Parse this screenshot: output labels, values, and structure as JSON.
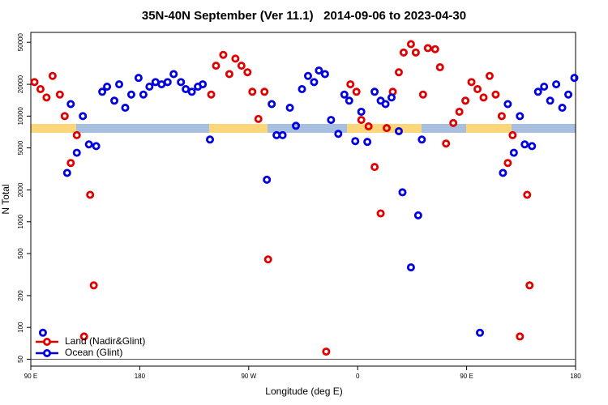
{
  "chart_data": {
    "type": "scatter",
    "title": "35N-40N September (Ver 11.1)   2014-09-06 to 2023-04-30",
    "x_label": "Longitude (deg E)",
    "y_label": "N Total",
    "log_y": true,
    "legend": "bottom-left",
    "xlim": [
      90,
      540
    ],
    "ylim": [
      43,
      62000
    ],
    "xticks": [
      {
        "value": 90,
        "label": "90 E"
      },
      180,
      {
        "value": 270,
        "label": "90 W"
      },
      {
        "value": 360,
        "label": "0"
      },
      {
        "value": 450,
        "label": "90 E"
      },
      {
        "value": 540,
        "label": "180"
      }
    ],
    "yticks": [
      50,
      100,
      200,
      500,
      1000,
      2000,
      5000,
      10000,
      20000,
      50000
    ],
    "series": [
      {
        "name": "Land (Nadir&Glint)",
        "color": "#e00000",
        "x": [
          93,
          98,
          103,
          108,
          114,
          118,
          123,
          128,
          134,
          139,
          142,
          239,
          243,
          249,
          254,
          259,
          264,
          269,
          273,
          278,
          283,
          286,
          334,
          354,
          359,
          363,
          369,
          374,
          379,
          384,
          389,
          394,
          398,
          404,
          408,
          414,
          418,
          424,
          428,
          433,
          439,
          444,
          449,
          454,
          459,
          464,
          469,
          474,
          479,
          484,
          488,
          494,
          500,
          502
        ],
        "values": [
          21000,
          18000,
          15000,
          24000,
          16000,
          10000,
          3600,
          6600,
          82,
          1800,
          250,
          16000,
          30000,
          38000,
          25000,
          35000,
          30000,
          26000,
          17000,
          9400,
          17000,
          440,
          59,
          20000,
          17000,
          9200,
          8000,
          3300,
          1200,
          7700,
          17000,
          26000,
          40000,
          48000,
          40000,
          16000,
          44000,
          43000,
          29000,
          5500,
          8600,
          11000,
          14000,
          21000,
          18000,
          15000,
          24000,
          16000,
          10000,
          3600,
          6600,
          82,
          1800,
          250
        ]
      },
      {
        "name": "Ocean (Glint)",
        "color": "#0000e0",
        "x": [
          100,
          120,
          123,
          128,
          133,
          138,
          144,
          149,
          153,
          159,
          163,
          168,
          173,
          179,
          183,
          188,
          193,
          198,
          203,
          208,
          214,
          218,
          223,
          228,
          232,
          238,
          285,
          289,
          293,
          298,
          304,
          309,
          314,
          319,
          324,
          328,
          333,
          338,
          344,
          349,
          353,
          358,
          363,
          368,
          374,
          379,
          383,
          388,
          394,
          397,
          404,
          410,
          413,
          461,
          480,
          484,
          489,
          494,
          498,
          504,
          509,
          514,
          519,
          524,
          529,
          534,
          539
        ],
        "values": [
          89,
          2900,
          13000,
          4500,
          10000,
          5400,
          5200,
          17000,
          19000,
          14000,
          20000,
          12000,
          16000,
          23000,
          16000,
          19000,
          21000,
          20000,
          21000,
          25000,
          21000,
          18000,
          17000,
          19000,
          20000,
          6000,
          2500,
          13000,
          6600,
          6600,
          12000,
          8100,
          18000,
          24000,
          21000,
          27000,
          25000,
          9200,
          6800,
          16000,
          14000,
          5800,
          11000,
          5700,
          17000,
          14000,
          13000,
          15000,
          7200,
          1900,
          370,
          1150,
          6000,
          89,
          2900,
          13000,
          4500,
          10000,
          5400,
          5200,
          17000,
          19000,
          14000,
          20000,
          12000,
          16000,
          23000
        ]
      }
    ]
  }
}
